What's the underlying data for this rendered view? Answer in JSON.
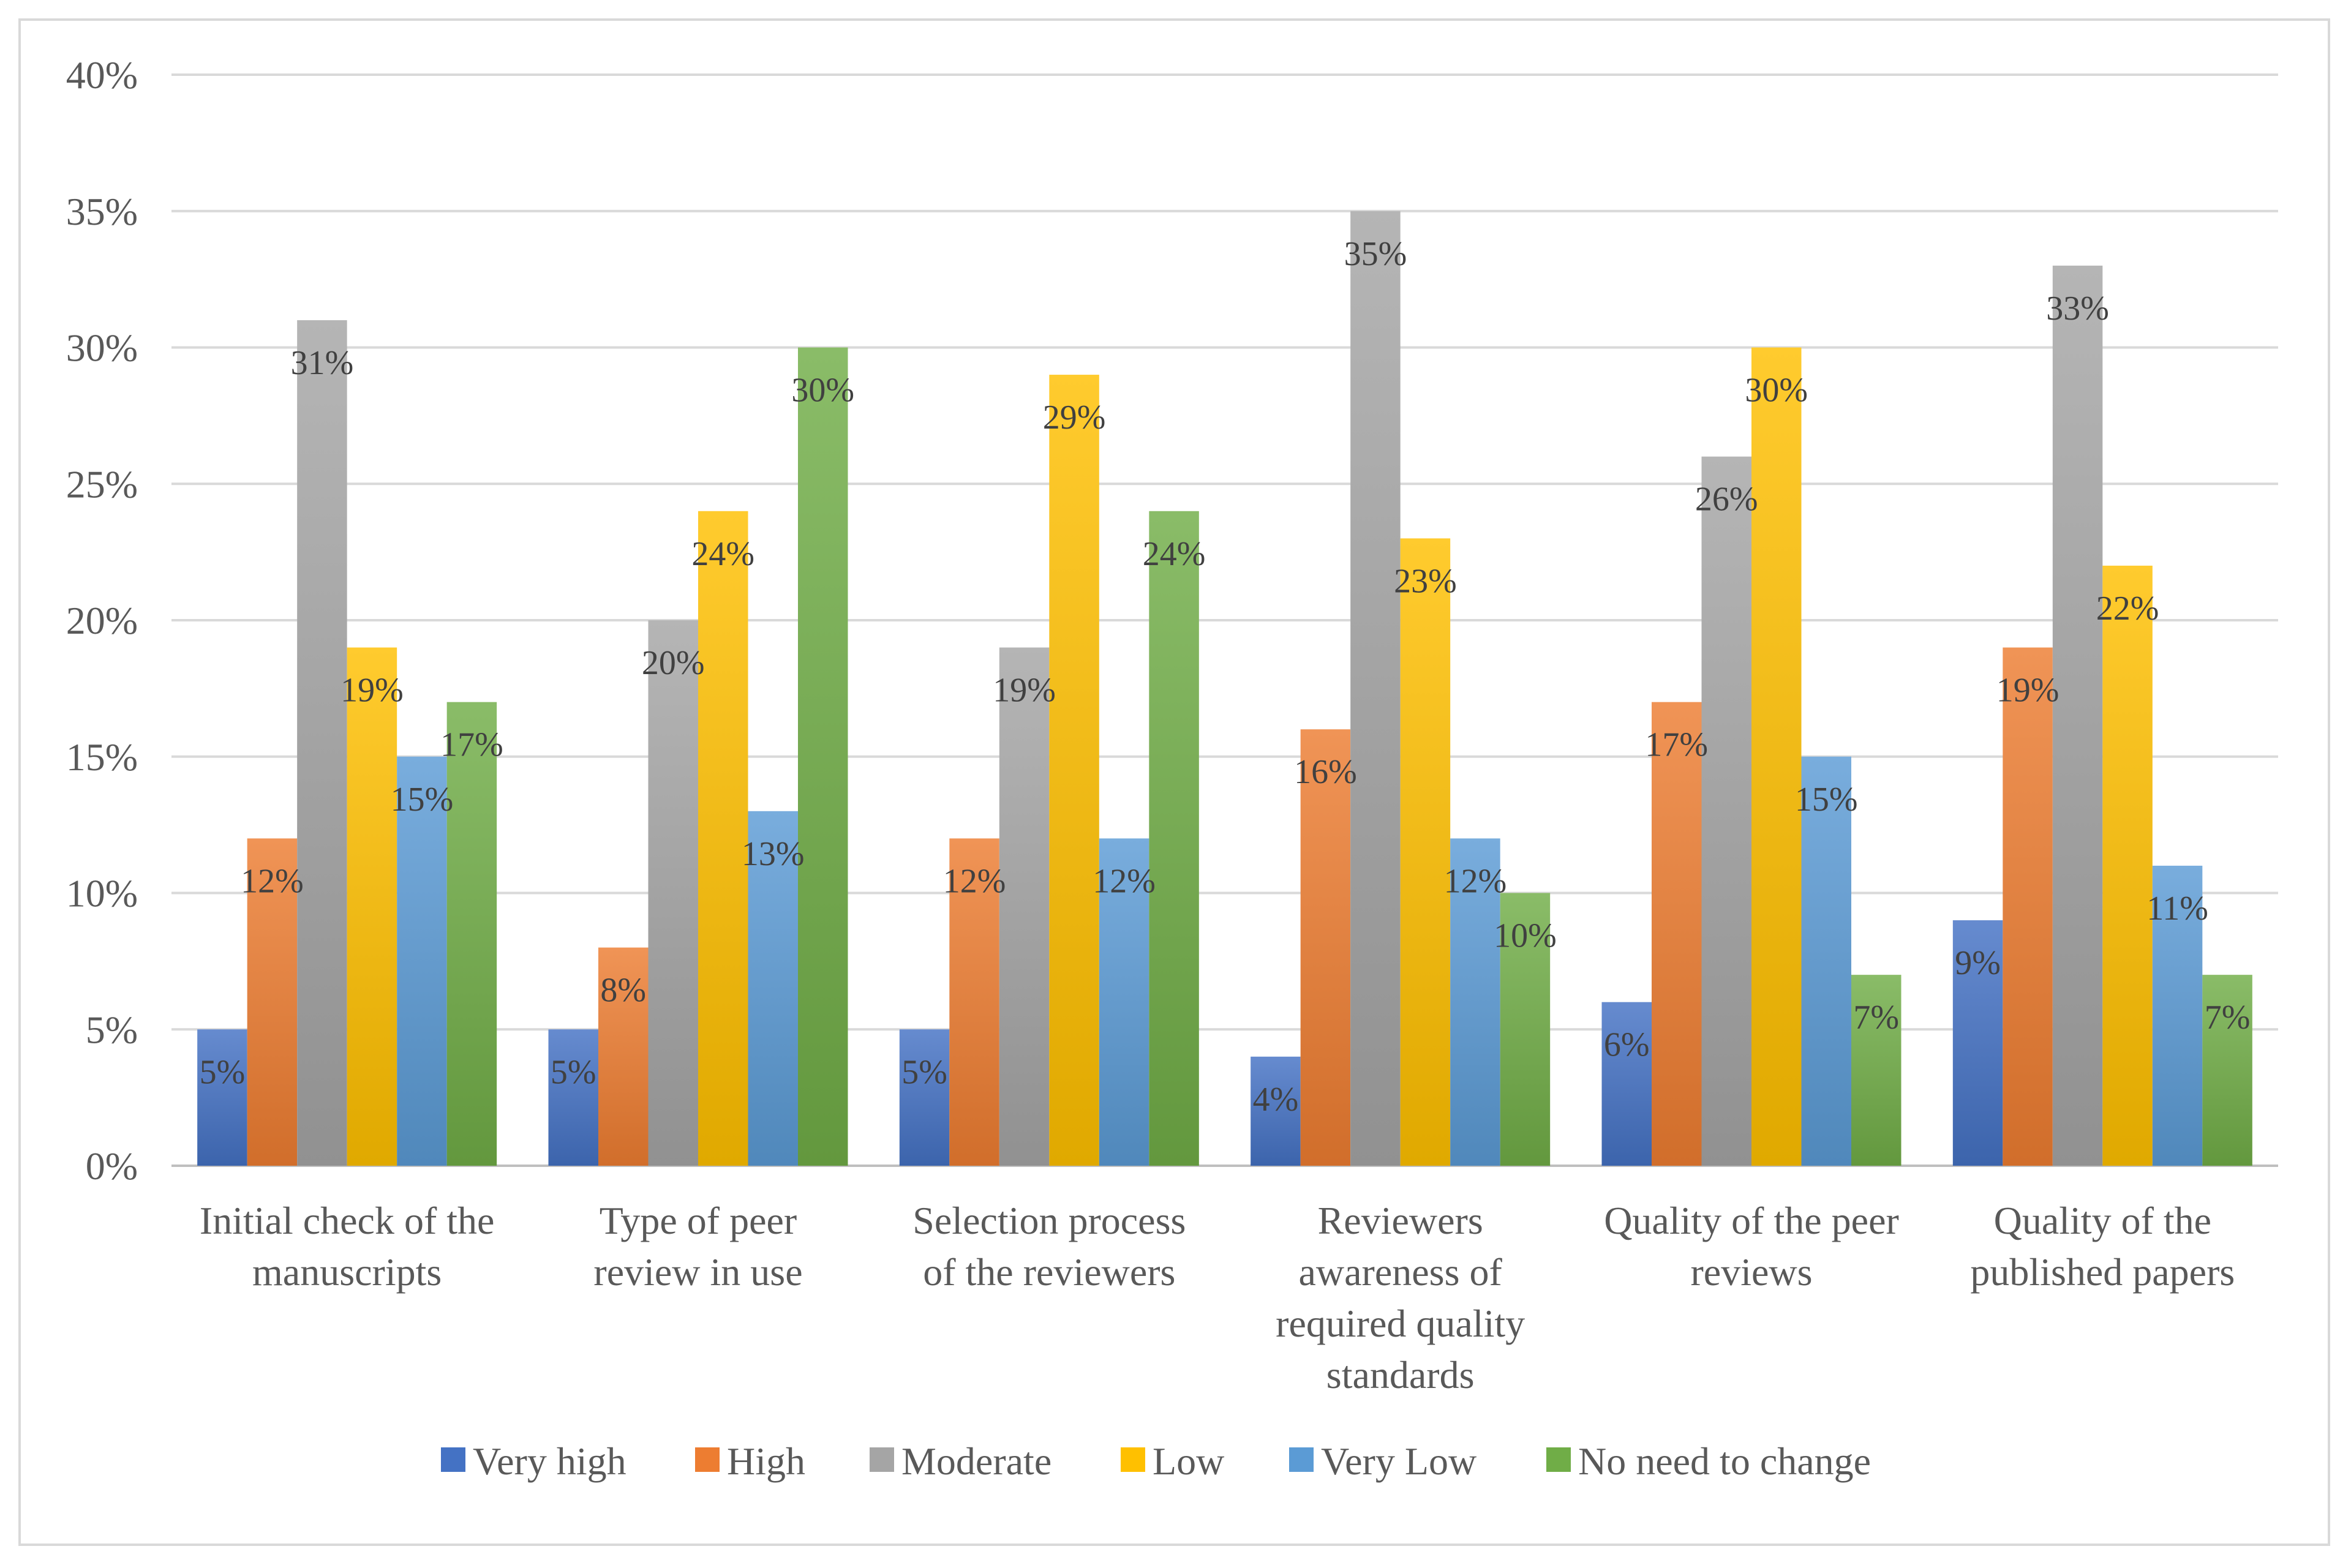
{
  "chart_data": {
    "type": "bar",
    "title": "",
    "xlabel": "",
    "ylabel": "",
    "ylim": [
      0,
      40
    ],
    "yticks": [
      0,
      5,
      10,
      15,
      20,
      25,
      30,
      35,
      40
    ],
    "tick_suffix": "%",
    "grid": true,
    "legend_position": "bottom",
    "categories": [
      [
        "Initial check of the",
        "manuscripts"
      ],
      [
        "Type of peer",
        "review in use"
      ],
      [
        "Selection process",
        "of the reviewers"
      ],
      [
        "Reviewers",
        "awareness of",
        "required quality",
        "standards"
      ],
      [
        "Quality of the peer",
        "reviews"
      ],
      [
        "Quality of the",
        "published papers"
      ]
    ],
    "series": [
      {
        "name": "Very high",
        "color": "#4472c4",
        "values": [
          5,
          5,
          5,
          4,
          6,
          9
        ]
      },
      {
        "name": "High",
        "color": "#ed7d31",
        "values": [
          12,
          8,
          12,
          16,
          17,
          19
        ]
      },
      {
        "name": "Moderate",
        "color": "#a5a5a5",
        "values": [
          31,
          20,
          19,
          35,
          26,
          33
        ]
      },
      {
        "name": "Low",
        "color": "#ffc000",
        "values": [
          19,
          24,
          29,
          23,
          30,
          22
        ]
      },
      {
        "name": "Very Low",
        "color": "#5b9bd5",
        "values": [
          15,
          13,
          12,
          12,
          15,
          11
        ]
      },
      {
        "name": "No need to change",
        "color": "#70ad47",
        "values": [
          17,
          30,
          24,
          10,
          7,
          7
        ]
      }
    ]
  }
}
